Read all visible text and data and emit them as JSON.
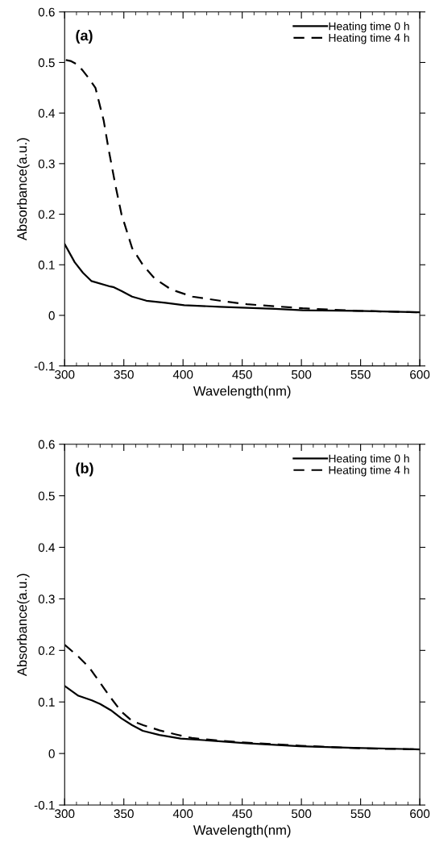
{
  "chart_data": [
    {
      "type": "line",
      "annotations": [
        "(a)"
      ],
      "xlabel": "Wavelength(nm)",
      "ylabel": "Absorbance(a.u.)",
      "xlim": [
        300,
        600
      ],
      "ylim": [
        -0.1,
        0.6
      ],
      "xticks": [
        300,
        350,
        400,
        450,
        500,
        550,
        600
      ],
      "yticks": [
        -0.1,
        0,
        0.1,
        0.2,
        0.3,
        0.4,
        0.5,
        0.6
      ],
      "legend": "top right",
      "grid": false,
      "series": [
        {
          "name": "Heating time 0 h",
          "color": "#000000",
          "line_style": "solid",
          "x": [
            300,
            308.5,
            315.5,
            322.5,
            338.6,
            341,
            348,
            357,
            369,
            385,
            401,
            431,
            477.5,
            501,
            547,
            600
          ],
          "values": [
            0.141,
            0.105,
            0.084,
            0.068,
            0.057,
            0.056,
            0.048,
            0.037,
            0.029,
            0.025,
            0.02,
            0.017,
            0.013,
            0.01,
            0.009,
            0.006
          ]
        },
        {
          "name": "Heating time 4 h",
          "color": "#000000",
          "line_style": "dashed",
          "x": [
            301,
            305,
            310,
            315,
            320,
            326,
            333,
            337,
            343,
            348,
            357,
            366,
            376,
            390,
            408,
            431,
            454,
            501,
            547,
            600
          ],
          "values": [
            0.505,
            0.503,
            0.497,
            0.485,
            0.47,
            0.45,
            0.385,
            0.33,
            0.256,
            0.2,
            0.133,
            0.1,
            0.073,
            0.051,
            0.037,
            0.029,
            0.022,
            0.014,
            0.009,
            0.006
          ]
        }
      ]
    },
    {
      "type": "line",
      "annotations": [
        "(b)"
      ],
      "xlabel": "Wavelength(nm)",
      "ylabel": "Absorbance(a.u.)",
      "xlim": [
        300,
        600
      ],
      "ylim": [
        -0.1,
        0.6
      ],
      "xticks": [
        300,
        350,
        400,
        450,
        500,
        550,
        600
      ],
      "yticks": [
        -0.1,
        0,
        0.1,
        0.2,
        0.3,
        0.4,
        0.5,
        0.6
      ],
      "legend": "top right",
      "grid": false,
      "series": [
        {
          "name": "Heating time 0 h",
          "color": "#000000",
          "line_style": "solid",
          "x": [
            300,
            311.6,
            323,
            330,
            339,
            348,
            357,
            366,
            380,
            398,
            430,
            453,
            498.6,
            544,
            600
          ],
          "values": [
            0.131,
            0.112,
            0.103,
            0.096,
            0.084,
            0.068,
            0.055,
            0.044,
            0.036,
            0.029,
            0.024,
            0.02,
            0.014,
            0.011,
            0.008
          ]
        },
        {
          "name": "Heating time 4 h",
          "color": "#000000",
          "line_style": "dashed",
          "x": [
            300,
            311.6,
            320.8,
            330,
            339,
            348,
            357,
            366.4,
            380,
            394,
            407.5,
            430,
            453,
            500,
            550,
            600
          ],
          "values": [
            0.211,
            0.188,
            0.167,
            0.137,
            0.108,
            0.081,
            0.063,
            0.055,
            0.045,
            0.037,
            0.03,
            0.025,
            0.021,
            0.015,
            0.01,
            0.008
          ]
        }
      ]
    }
  ]
}
